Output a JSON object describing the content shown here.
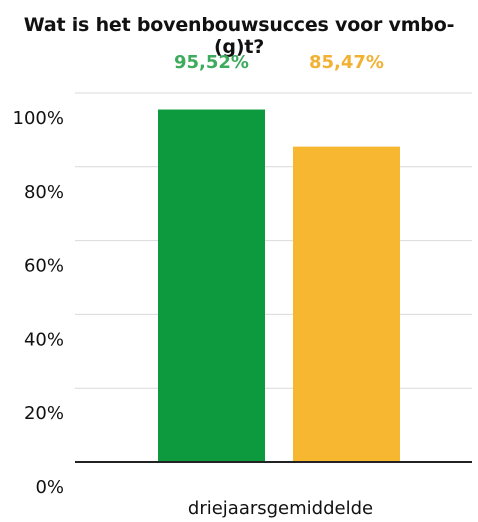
{
  "chart_data": {
    "type": "bar",
    "title": "Wat is het bovenbouwsucces voor vmbo-(g)t?",
    "categories": [
      "driejaarsgemiddelde"
    ],
    "series": [
      {
        "values": [
          95.52
        ],
        "label": "95,52%",
        "color": "#0d9a3e"
      },
      {
        "values": [
          85.47
        ],
        "label": "85,47%",
        "color": "#f7b731"
      }
    ],
    "ylim": [
      0,
      100
    ],
    "yticks": [
      0,
      20,
      40,
      60,
      80,
      100
    ],
    "ytick_labels": [
      "0%",
      "20%",
      "40%",
      "60%",
      "80%",
      "100%"
    ],
    "grid": true,
    "data_label_colors": [
      "#3daa5c",
      "#f2b132"
    ],
    "xlabel": "",
    "ylabel": ""
  }
}
